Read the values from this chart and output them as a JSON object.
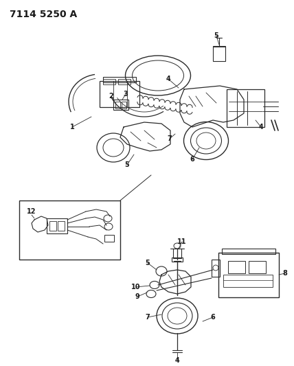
{
  "title": "7114 5250 A",
  "background_color": "#ffffff",
  "figsize": [
    4.28,
    5.33
  ],
  "dpi": 100,
  "line_color": "#2a2a2a",
  "text_color": "#1a1a1a",
  "title_fontsize": 10,
  "label_fontsize": 7
}
